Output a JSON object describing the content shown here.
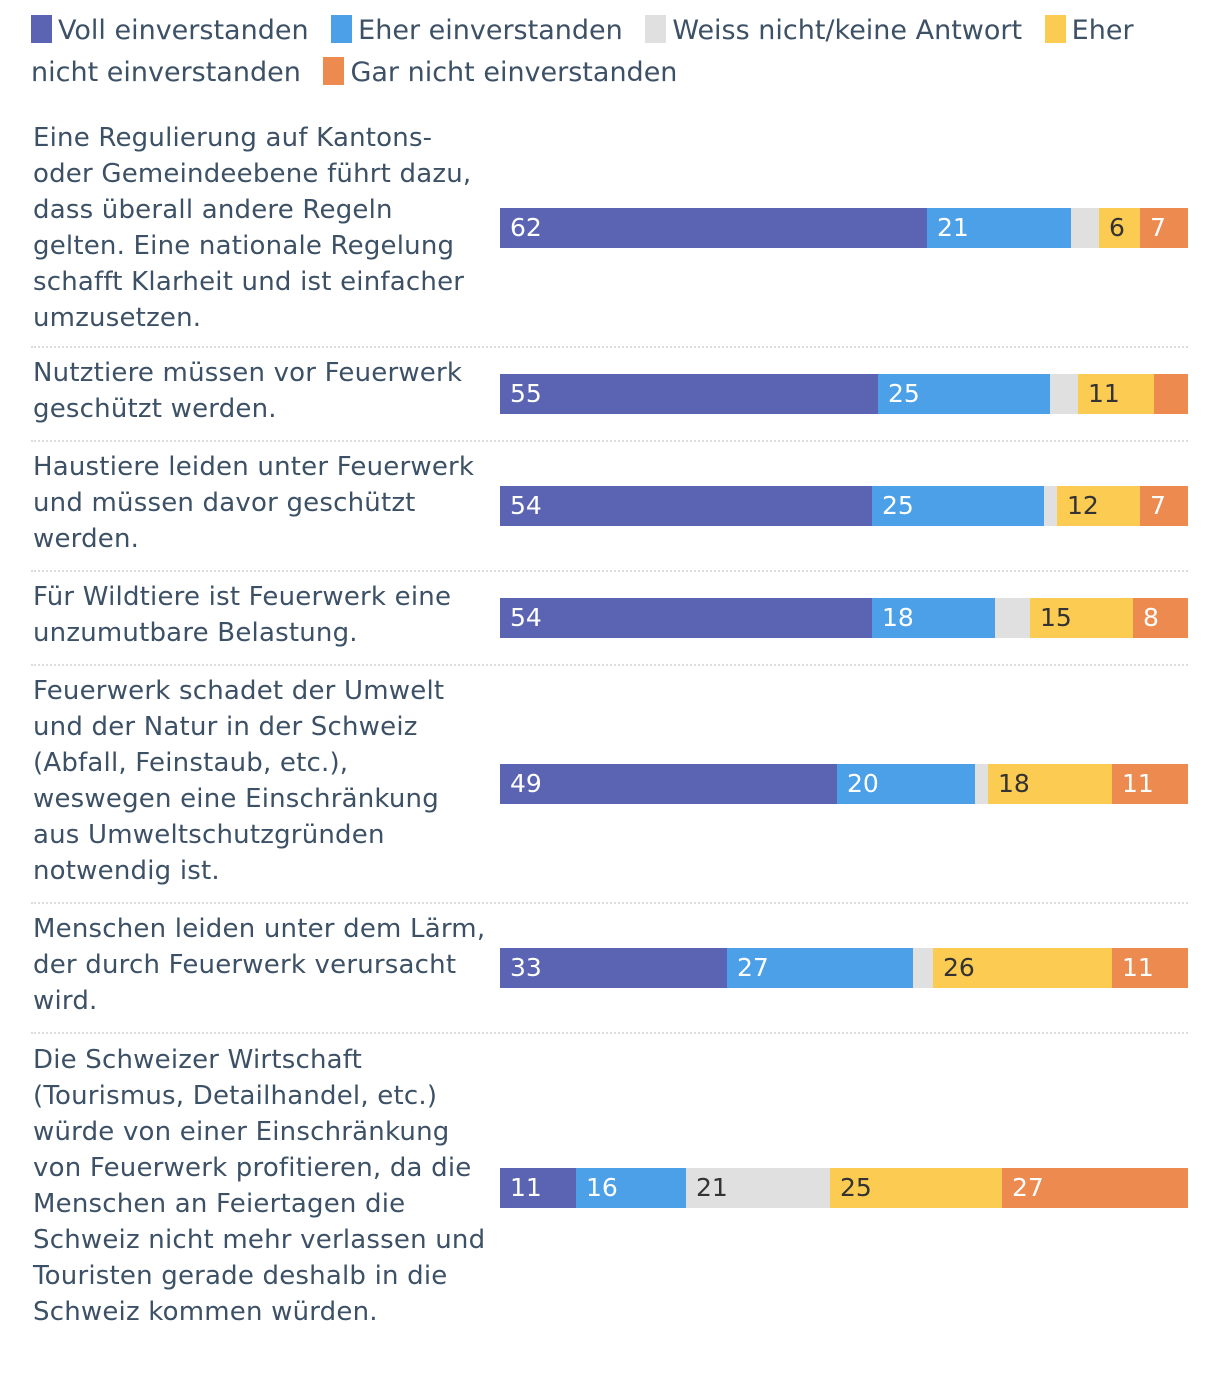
{
  "legend": [
    {
      "label": "Voll einverstanden",
      "color": "#5a64b2"
    },
    {
      "label": "Eher einverstanden",
      "color": "#4ba0e8"
    },
    {
      "label": "Weiss nicht/keine Antwort",
      "color": "#e0e0e0"
    },
    {
      "label": "Eher nicht einverstanden",
      "color": "#fbcb52"
    },
    {
      "label": "Gar nicht einverstanden",
      "color": "#ed8a4f"
    }
  ],
  "chart_data": {
    "type": "bar",
    "orientation": "horizontal",
    "stacked": true,
    "unit": "%",
    "title": "",
    "xlabel": "",
    "ylabel": "",
    "xlim": [
      0,
      100
    ],
    "grid": false,
    "legend_position": "top",
    "categories": [
      "Eine Regulierung auf Kantons- oder Gemeindeebene führt dazu, dass überall andere Regeln gelten. Eine nationale Regelung schafft Klarheit und ist einfacher umzusetzen.",
      "Nutztiere müssen vor Feuerwerk geschützt werden.",
      "Haustiere leiden unter Feuerwerk und müssen davor geschützt werden.",
      "Für Wildtiere ist Feuerwerk eine unzumutbare Belastung.",
      "Feuerwerk schadet der Umwelt und der Natur in der Schweiz (Abfall, Feinstaub, etc.), weswegen eine Einschränkung aus Umweltschutzgründen notwendig ist.",
      "Menschen leiden unter dem Lärm, der durch Feuerwerk verursacht wird.",
      "Die Schweizer Wirtschaft (Tourismus, Detailhandel, etc.) würde von einer Einschränkung von Feuerwerk profitieren, da die Menschen an Feiertagen die Schweiz nicht mehr verlassen und Touristen gerade deshalb in die Schweiz kommen würden."
    ],
    "series": [
      {
        "name": "Voll einverstanden",
        "color": "#5a64b2",
        "label_color": "#ffffff",
        "values": [
          62,
          55,
          54,
          54,
          49,
          33,
          11
        ],
        "labels": [
          "62",
          "55",
          "54",
          "54",
          "49",
          "33",
          "11"
        ]
      },
      {
        "name": "Eher einverstanden",
        "color": "#4ba0e8",
        "label_color": "#ffffff",
        "values": [
          21,
          25,
          25,
          18,
          20,
          27,
          16
        ],
        "labels": [
          "21",
          "25",
          "25",
          "18",
          "20",
          "27",
          "16"
        ]
      },
      {
        "name": "Weiss nicht/keine Antwort",
        "color": "#e0e0e0",
        "label_color": "#333333",
        "values": [
          4,
          4,
          2,
          5,
          2,
          3,
          21
        ],
        "labels": [
          "",
          "",
          "",
          "",
          "",
          "",
          "21"
        ]
      },
      {
        "name": "Eher nicht einverstanden",
        "color": "#fbcb52",
        "label_color": "#333333",
        "values": [
          6,
          11,
          12,
          15,
          18,
          26,
          25
        ],
        "labels": [
          "6",
          "11",
          "12",
          "15",
          "18",
          "26",
          "25"
        ]
      },
      {
        "name": "Gar nicht einverstanden",
        "color": "#ed8a4f",
        "label_color": "#ffffff",
        "values": [
          7,
          5,
          7,
          8,
          11,
          11,
          27
        ],
        "labels": [
          "7",
          "",
          "7",
          "8",
          "11",
          "11",
          "27"
        ]
      }
    ]
  }
}
